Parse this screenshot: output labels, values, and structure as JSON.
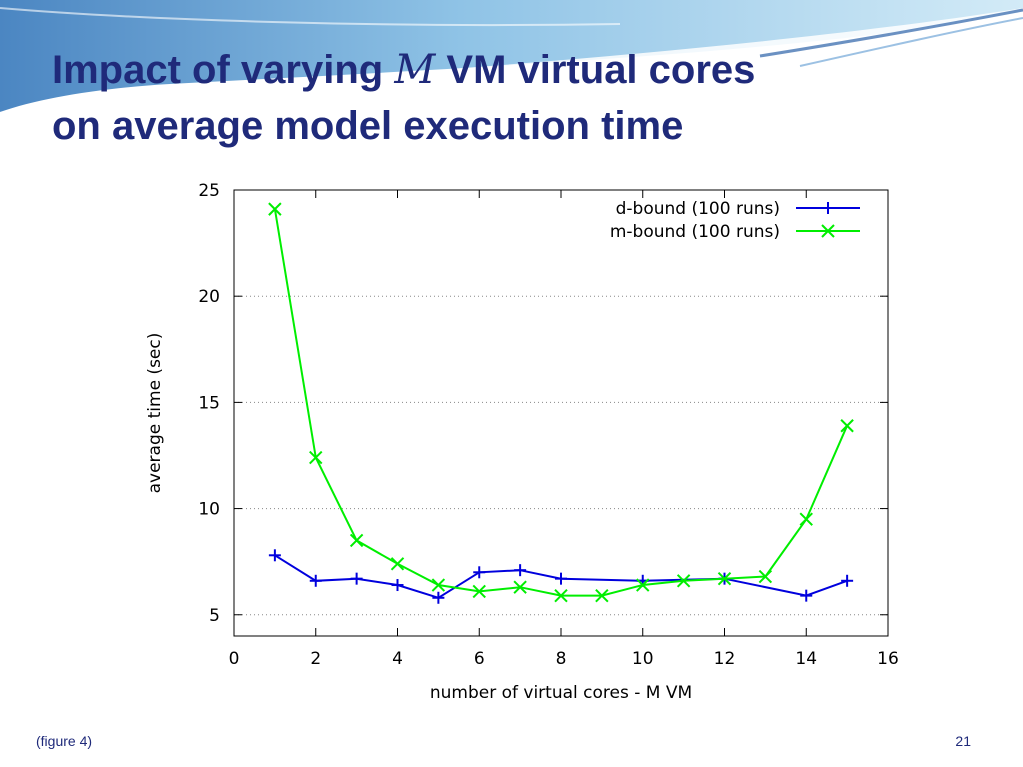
{
  "slide": {
    "title_line1_part1": "Impact of varying ",
    "title_m": "M",
    "title_line1_part2": " VM virtual cores",
    "title_line2": "on average model execution time",
    "footer_note": "(figure 4)",
    "page_number": "21"
  },
  "chart_data": {
    "type": "line",
    "title": "",
    "xlabel": "number of virtual cores - M VM",
    "ylabel": "average time (sec)",
    "xlim": [
      0,
      16
    ],
    "ylim": [
      4,
      25
    ],
    "x_ticks": [
      0,
      2,
      4,
      6,
      8,
      10,
      12,
      14,
      16
    ],
    "y_ticks": [
      5,
      10,
      15,
      20,
      25
    ],
    "grid": "dotted horizontal lines",
    "legend_position": "top-right",
    "series": [
      {
        "name": "d-bound (100 runs)",
        "color": "#0000dd",
        "marker": "plus",
        "x": [
          1,
          2,
          3,
          4,
          5,
          6,
          7,
          8,
          10,
          12,
          14,
          15
        ],
        "y": [
          7.8,
          6.6,
          6.7,
          6.4,
          5.8,
          7.0,
          7.1,
          6.7,
          6.6,
          6.7,
          5.9,
          6.6
        ]
      },
      {
        "name": "m-bound (100 runs)",
        "color": "#00ee00",
        "marker": "cross",
        "x": [
          1,
          2,
          3,
          4,
          5,
          6,
          7,
          8,
          9,
          10,
          11,
          12,
          13,
          14,
          15
        ],
        "y": [
          24.1,
          12.4,
          8.5,
          7.4,
          6.4,
          6.1,
          6.3,
          5.9,
          5.9,
          6.4,
          6.6,
          6.7,
          6.8,
          9.5,
          13.9
        ]
      }
    ]
  }
}
